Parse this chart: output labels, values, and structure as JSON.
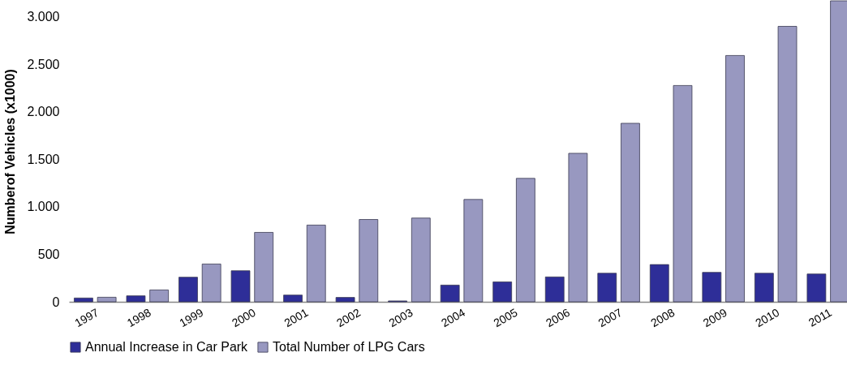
{
  "chart_data": {
    "type": "bar",
    "ylabel": "Numberof Vehicles (x1000)",
    "categories": [
      "1997",
      "1998",
      "1999",
      "2000",
      "2001",
      "2002",
      "2003",
      "2004",
      "2005",
      "2006",
      "2007",
      "2008",
      "2009",
      "2010",
      "2011"
    ],
    "series": [
      {
        "name": "Annual Increase in Car Park",
        "color": "#2e2e98",
        "values": [
          40,
          63,
          259,
          327,
          71,
          46,
          9,
          176,
          210,
          262,
          301,
          392,
          310,
          301,
          293
        ]
      },
      {
        "name": "Total Number of LPG Cars",
        "color": "#9898c0",
        "values": [
          48,
          125,
          398,
          731,
          808,
          867,
          882,
          1078,
          1300,
          1564,
          1880,
          2278,
          2594,
          2901,
          3170
        ]
      }
    ],
    "ylim": [
      0,
      3170
    ],
    "yticks": [
      0,
      {
        "value": 500,
        "label": "500"
      },
      {
        "value": 1000,
        "label": "1.000"
      },
      {
        "value": 1500,
        "label": "1.500"
      },
      {
        "value": 2000,
        "label": "2.000"
      },
      {
        "value": 2500,
        "label": "2.500"
      },
      {
        "value": 3000,
        "label": "3.000"
      }
    ],
    "grid": false,
    "legend": "bottom"
  }
}
